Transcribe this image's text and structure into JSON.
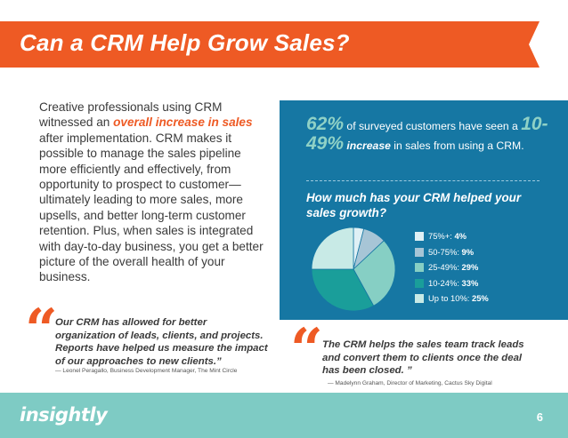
{
  "header": {
    "title": "Can a CRM Help Grow Sales?"
  },
  "intro": {
    "before": "Creative professionals using CRM witnessed an ",
    "highlight": "overall increase in sales",
    "after": " after implementation. CRM makes it possible to manage the sales pipeline more efficiently and effectively, from opportunity to prospect to customer—ultimately leading to more sales, more upsells, and better long-term customer retention. Plus, when sales is integrated with day-to-day business, you get a better picture of the overall health of your business."
  },
  "quote_left": {
    "mark": "“",
    "text": "Our CRM has allowed for better organization of leads, clients, and projects. Reports have helped us measure the impact of our approaches to new clients.”",
    "attribution": "— Leonel Peragallo, Business Development Manager, The Mint Circle"
  },
  "stat": {
    "percent": "62%",
    "text1": " of surveyed customers have seen a ",
    "range": "10-49%",
    "text2": " increase",
    "text3": " in sales from using a CRM."
  },
  "question": "How much has your CRM helped your sales growth?",
  "chart_data": {
    "type": "pie",
    "title": "How much has your CRM helped your sales growth?",
    "slices": [
      {
        "label": "75%+:",
        "value": 4,
        "value_text": "4%",
        "color": "#dff0f5"
      },
      {
        "label": "50-75%:",
        "value": 9,
        "value_text": "9%",
        "color": "#a7c5d6"
      },
      {
        "label": "25-49%:",
        "value": 29,
        "value_text": "29%",
        "color": "#86cfc4"
      },
      {
        "label": "10-24%:",
        "value": 33,
        "value_text": "33%",
        "color": "#1a9e9a"
      },
      {
        "label": "Up to 10%:",
        "value": 25,
        "value_text": "25%",
        "color": "#c8eae6"
      }
    ],
    "legend_position": "right"
  },
  "quote_right": {
    "mark": "“",
    "text": "The CRM helps the sales team track leads and convert them to clients once the deal has been closed. ”",
    "attribution": "— Madelynn Graham, Director of Marketing, Cactus Sky Digital"
  },
  "footer": {
    "logo": "insightly",
    "page_number": "6"
  },
  "colors": {
    "accent": "#ee5a24",
    "panel": "#1677a3",
    "footer": "#7ecbc4"
  }
}
